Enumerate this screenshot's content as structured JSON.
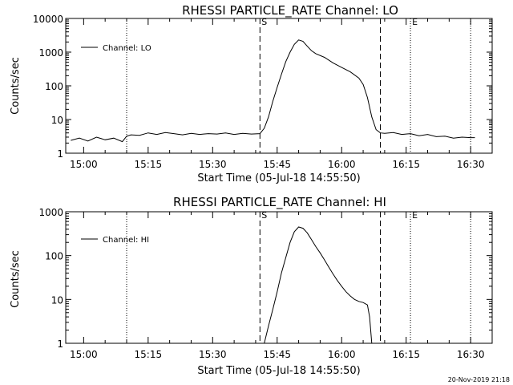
{
  "footer": {
    "date": "20-Nov-2019 21:18"
  },
  "chart_data": [
    {
      "type": "line",
      "title": "RHESSI PARTICLE_RATE Channel: LO",
      "xlabel": "Start Time (05-Jul-18 14:55:50)",
      "ylabel": "Counts/sec",
      "y_scale": "log",
      "xlim": [
        "14:55:50",
        "16:35:00"
      ],
      "ylim": [
        1,
        10000
      ],
      "x_ticks": [
        "15:00",
        "15:15",
        "15:30",
        "15:45",
        "16:00",
        "16:15",
        "16:30"
      ],
      "y_ticks": [
        "1",
        "10",
        "100",
        "1000",
        "10000"
      ],
      "legend": {
        "position": "top-left",
        "entries": [
          "Channel: LO"
        ]
      },
      "markers": [
        {
          "label": "",
          "time": "15:10",
          "style": "dotted"
        },
        {
          "label": "S",
          "time": "15:41",
          "style": "dashed"
        },
        {
          "label": "",
          "time": "16:09",
          "style": "dashed"
        },
        {
          "label": "E",
          "time": "16:16",
          "style": "dotted"
        },
        {
          "label": "",
          "time": "16:30",
          "style": "dotted"
        }
      ],
      "series": [
        {
          "name": "Channel: LO",
          "x": [
            "14:57",
            "14:59",
            "15:01",
            "15:03",
            "15:05",
            "15:07",
            "15:09",
            "15:10",
            "15:11",
            "15:13",
            "15:15",
            "15:17",
            "15:19",
            "15:21",
            "15:23",
            "15:25",
            "15:27",
            "15:29",
            "15:31",
            "15:33",
            "15:35",
            "15:37",
            "15:39",
            "15:41",
            "15:42",
            "15:43",
            "15:44",
            "15:45",
            "15:46",
            "15:47",
            "15:48",
            "15:49",
            "15:50",
            "15:51",
            "15:52",
            "15:53",
            "15:54",
            "15:56",
            "15:58",
            "16:00",
            "16:02",
            "16:04",
            "16:05",
            "16:06",
            "16:07",
            "16:08",
            "16:09",
            "16:10",
            "16:12",
            "16:14",
            "16:16",
            "16:18",
            "16:20",
            "16:22",
            "16:24",
            "16:26",
            "16:28",
            "16:30",
            "16:31"
          ],
          "values": [
            2.4,
            2.8,
            2.3,
            3.0,
            2.5,
            2.8,
            2.2,
            3.2,
            3.5,
            3.4,
            4.0,
            3.6,
            4.1,
            3.8,
            3.5,
            3.9,
            3.6,
            3.8,
            3.7,
            4.0,
            3.6,
            3.9,
            3.7,
            3.8,
            5.5,
            12,
            35,
            90,
            220,
            520,
            1000,
            1700,
            2300,
            2100,
            1500,
            1100,
            900,
            700,
            480,
            350,
            260,
            170,
            110,
            45,
            12,
            5,
            4.0,
            3.9,
            4.1,
            3.6,
            3.8,
            3.3,
            3.6,
            3.1,
            3.2,
            2.8,
            3.0,
            2.9,
            2.9
          ]
        }
      ]
    },
    {
      "type": "line",
      "title": "RHESSI PARTICLE_RATE Channel: HI",
      "xlabel": "Start Time (05-Jul-18 14:55:50)",
      "ylabel": "Counts/sec",
      "y_scale": "log",
      "xlim": [
        "14:55:50",
        "16:35:00"
      ],
      "ylim": [
        1,
        1000
      ],
      "x_ticks": [
        "15:00",
        "15:15",
        "15:30",
        "15:45",
        "16:00",
        "16:15",
        "16:30"
      ],
      "y_ticks": [
        "1",
        "10",
        "100",
        "1000"
      ],
      "legend": {
        "position": "top-left",
        "entries": [
          "Channel: HI"
        ]
      },
      "markers": [
        {
          "label": "",
          "time": "15:10",
          "style": "dotted"
        },
        {
          "label": "S",
          "time": "15:41",
          "style": "dashed"
        },
        {
          "label": "",
          "time": "16:09",
          "style": "dashed"
        },
        {
          "label": "E",
          "time": "16:16",
          "style": "dotted"
        },
        {
          "label": "",
          "time": "16:30",
          "style": "dotted"
        }
      ],
      "series": [
        {
          "name": "Channel: HI",
          "x": [
            "15:42",
            "15:43",
            "15:44",
            "15:45",
            "15:46",
            "15:47",
            "15:48",
            "15:49",
            "15:50",
            "15:51",
            "15:52",
            "15:53",
            "15:54",
            "15:55",
            "15:56",
            "15:57",
            "15:58",
            "15:59",
            "16:00",
            "16:01",
            "16:02",
            "16:03",
            "16:04",
            "16:05",
            "16:06",
            "16:06.5",
            "16:07"
          ],
          "values": [
            1.0,
            2.5,
            6,
            15,
            40,
            90,
            200,
            350,
            450,
            420,
            330,
            230,
            160,
            115,
            80,
            55,
            38,
            27,
            20,
            15,
            12,
            10,
            9,
            8.5,
            7.5,
            4,
            1.0
          ]
        }
      ]
    }
  ]
}
